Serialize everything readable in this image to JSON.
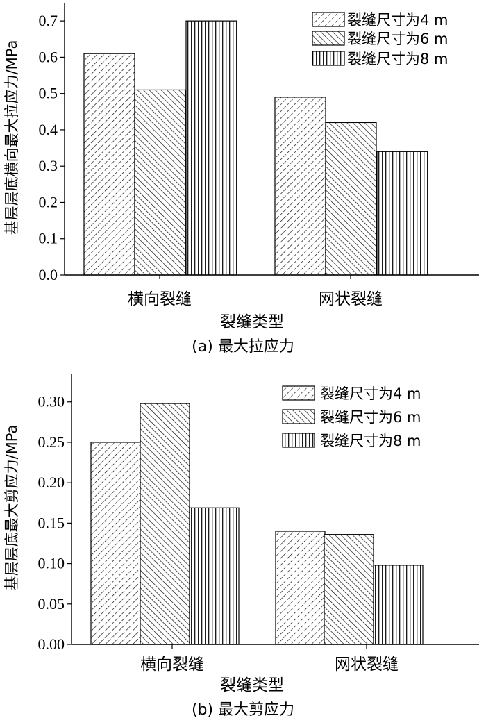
{
  "chart_data": [
    {
      "type": "bar",
      "caption": "(a) 最大拉应力",
      "xlabel": "裂缝类型",
      "ylabel": "基层层底横向最大拉应力/MPa",
      "categories": [
        "横向裂缝",
        "网状裂缝"
      ],
      "ylim": [
        0,
        0.75
      ],
      "yticks": [
        "0.0",
        "0.1",
        "0.2",
        "0.3",
        "0.4",
        "0.5",
        "0.6",
        "0.7"
      ],
      "legend_position": "top-right",
      "series": [
        {
          "name": "裂缝尺寸为4 m",
          "values": [
            0.61,
            0.49
          ]
        },
        {
          "name": "裂缝尺寸为6 m",
          "values": [
            0.51,
            0.42
          ]
        },
        {
          "name": "裂缝尺寸为8 m",
          "values": [
            0.7,
            0.34
          ]
        }
      ]
    },
    {
      "type": "bar",
      "caption": "(b) 最大剪应力",
      "xlabel": "裂缝类型",
      "ylabel": "基层层底最大剪应力/MPa",
      "categories": [
        "横向裂缝",
        "网状裂缝"
      ],
      "ylim": [
        0,
        0.335
      ],
      "yticks": [
        "0.00",
        "0.05",
        "0.10",
        "0.15",
        "0.20",
        "0.25",
        "0.30"
      ],
      "legend_position": "top-right",
      "series": [
        {
          "name": "裂缝尺寸为4 m",
          "values": [
            0.25,
            0.14
          ]
        },
        {
          "name": "裂缝尺寸为6 m",
          "values": [
            0.298,
            0.136
          ]
        },
        {
          "name": "裂缝尺寸为8 m",
          "values": [
            0.169,
            0.098
          ]
        }
      ]
    }
  ]
}
